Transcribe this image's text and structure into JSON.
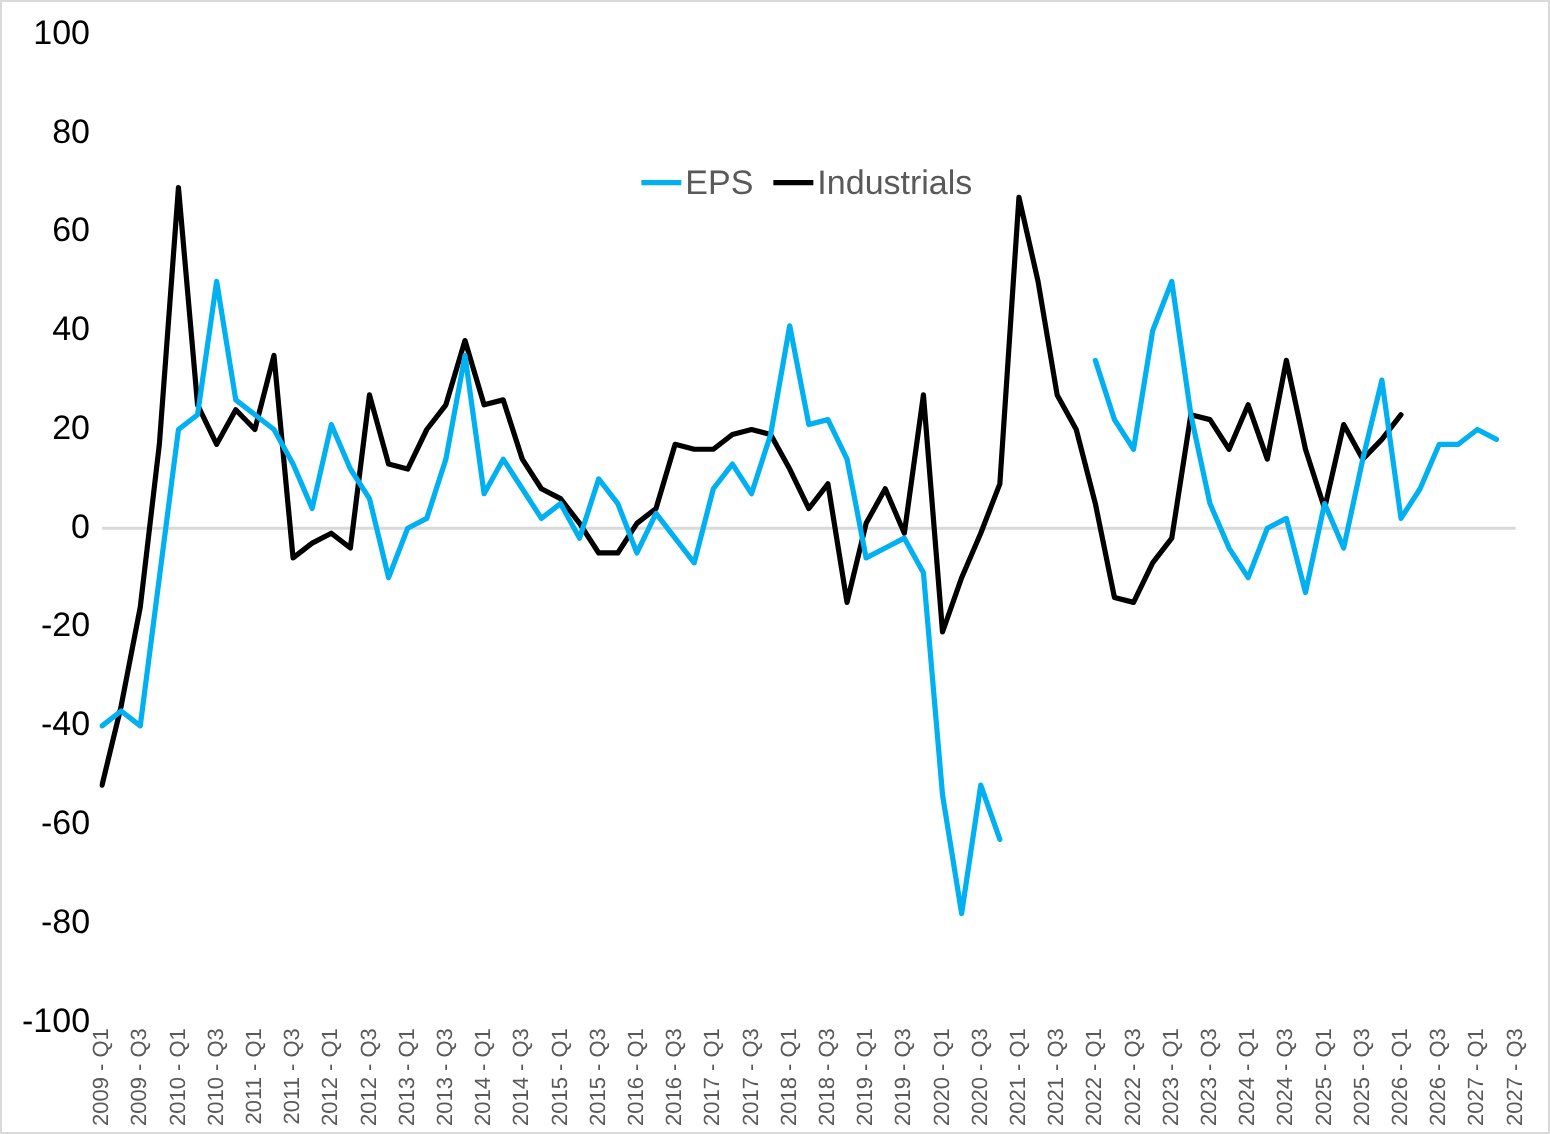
{
  "chart_data": {
    "type": "line",
    "categories": [
      "2009 - Q1",
      null,
      "2009 - Q3",
      null,
      "2010 - Q1",
      null,
      "2010 - Q3",
      null,
      "2011 - Q1",
      null,
      "2011 - Q3",
      null,
      "2012 - Q1",
      null,
      "2012 - Q3",
      null,
      "2013 - Q1",
      null,
      "2013 - Q3",
      null,
      "2014 - Q1",
      null,
      "2014 - Q3",
      null,
      "2015 - Q1",
      null,
      "2015 - Q3",
      null,
      "2016 - Q1",
      null,
      "2016 - Q3",
      null,
      "2017 - Q1",
      null,
      "2017 - Q3",
      null,
      "2018 - Q1",
      null,
      "2018 - Q3",
      null,
      "2019 - Q1",
      null,
      "2019 - Q3",
      null,
      "2020 - Q1",
      null,
      "2020 - Q3",
      null,
      "2021 - Q1",
      null,
      "2021 - Q3",
      null,
      "2022 - Q1",
      null,
      "2022 - Q3",
      null,
      "2023 - Q1",
      null,
      "2023 - Q3",
      null,
      "2024 - Q1",
      null,
      "2024 - Q3",
      null,
      "2025 - Q1",
      null,
      "2025 - Q3",
      null,
      "2026 - Q1",
      null,
      "2026 - Q3",
      null,
      "2027 - Q1",
      null,
      "2027 - Q3"
    ],
    "series": [
      {
        "name": "EPS",
        "color": "#00b0f0",
        "values": [
          -40,
          -37,
          -40,
          -10,
          20,
          23,
          50,
          26,
          23,
          20,
          13,
          4,
          21,
          12,
          6,
          -10,
          0,
          2,
          14,
          35,
          7,
          14,
          8,
          2,
          5,
          -2,
          10,
          5,
          -5,
          3,
          -2,
          -7,
          8,
          13,
          7,
          19,
          41,
          21,
          22,
          14,
          -6,
          -4,
          -2,
          -9,
          -54,
          -78,
          -52,
          -63,
          null,
          null,
          null,
          null,
          34,
          22,
          16,
          40,
          50,
          23,
          5,
          -4,
          -10,
          0,
          2,
          -13,
          5,
          -4,
          14,
          30,
          2,
          8,
          17,
          17,
          20,
          18,
          null
        ]
      },
      {
        "name": "Industrials",
        "color": "#000000",
        "values": [
          -52,
          -36,
          -16,
          17,
          69,
          25,
          17,
          24,
          20,
          35,
          -6,
          -3,
          -1,
          -4,
          27,
          13,
          12,
          20,
          25,
          38,
          25,
          26,
          14,
          8,
          6,
          1,
          -5,
          -5,
          1,
          4,
          17,
          16,
          16,
          19,
          20,
          19,
          12,
          4,
          9,
          -15,
          1,
          8,
          -1,
          27,
          -21,
          -10,
          -1,
          9,
          67,
          50,
          27,
          20,
          5,
          -14,
          -15,
          -7,
          -2,
          23,
          22,
          16,
          25,
          14,
          34,
          16,
          4,
          21,
          14,
          18,
          23,
          null,
          null,
          null,
          null,
          null,
          null
        ]
      }
    ],
    "ylim": [
      -100,
      100
    ],
    "yticks": [
      -100,
      -80,
      -60,
      -40,
      -20,
      0,
      20,
      40,
      60,
      80,
      100
    ],
    "grid": false,
    "legend": "top",
    "marker": "none",
    "line_style": "solid",
    "ref_lines": [
      {
        "axis": "y",
        "value": 0,
        "color": "#d9d9d9"
      }
    ]
  }
}
